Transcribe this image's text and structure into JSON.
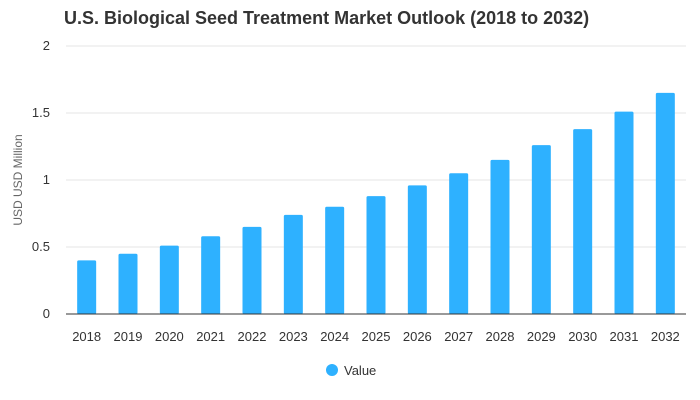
{
  "chart_data": {
    "type": "bar",
    "title": "U.S. Biological Seed Treatment Market Outlook (2018 to 2032)",
    "xlabel": "",
    "ylabel": "USD USD Million",
    "categories": [
      "2018",
      "2019",
      "2020",
      "2021",
      "2022",
      "2023",
      "2024",
      "2025",
      "2026",
      "2027",
      "2028",
      "2029",
      "2030",
      "2031",
      "2032"
    ],
    "series": [
      {
        "name": "Value",
        "color": "#2eb1ff",
        "values": [
          0.4,
          0.45,
          0.51,
          0.58,
          0.65,
          0.74,
          0.8,
          0.88,
          0.96,
          1.05,
          1.15,
          1.26,
          1.38,
          1.51,
          1.65
        ]
      }
    ],
    "ylim": [
      0,
      2
    ],
    "yticks": [
      "0",
      "0.5",
      "1",
      "1.5",
      "2"
    ],
    "grid": true,
    "legend": "bottom-center"
  }
}
